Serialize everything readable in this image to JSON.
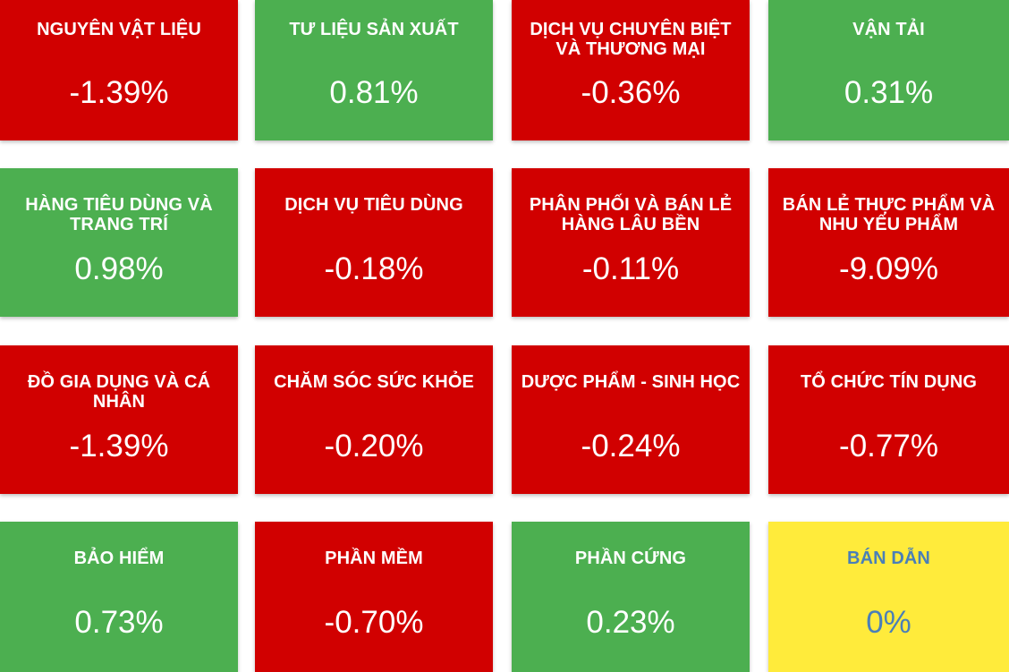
{
  "tiles": [
    {
      "name": "NGUYÊN VẬT LIỆU",
      "change": "-1.39%",
      "status": "down",
      "color": "#d10000"
    },
    {
      "name": "TƯ LIỆU SẢN XUẤT",
      "change": "0.81%",
      "status": "up",
      "color": "#4caf50"
    },
    {
      "name": "DỊCH VỤ CHUYÊN BIỆT VÀ THƯƠNG MẠI",
      "change": "-0.36%",
      "status": "down",
      "color": "#d10000"
    },
    {
      "name": "VẬN TẢI",
      "change": "0.31%",
      "status": "up",
      "color": "#4caf50"
    },
    {
      "name": "HÀNG TIÊU DÙNG VÀ TRANG TRÍ",
      "change": "0.98%",
      "status": "up",
      "color": "#4caf50"
    },
    {
      "name": "DỊCH VỤ TIÊU DÙNG",
      "change": "-0.18%",
      "status": "down",
      "color": "#d10000"
    },
    {
      "name": "PHÂN PHỐI VÀ BÁN LẺ HÀNG LÂU BỀN",
      "change": "-0.11%",
      "status": "down",
      "color": "#d10000"
    },
    {
      "name": "BÁN LẺ THỰC PHẨM VÀ NHU YẾU PHẨM",
      "change": "-9.09%",
      "status": "down",
      "color": "#d10000"
    },
    {
      "name": "ĐỒ GIA DỤNG VÀ CÁ NHÂN",
      "change": "-1.39%",
      "status": "down",
      "color": "#d10000"
    },
    {
      "name": "CHĂM SÓC SỨC KHỎE",
      "change": "-0.20%",
      "status": "down",
      "color": "#d10000"
    },
    {
      "name": "DƯỢC PHẨM - SINH HỌC",
      "change": "-0.24%",
      "status": "down",
      "color": "#d10000"
    },
    {
      "name": "TỔ CHỨC TÍN DỤNG",
      "change": "-0.77%",
      "status": "down",
      "color": "#d10000"
    },
    {
      "name": "BẢO HIỂM",
      "change": "0.73%",
      "status": "up",
      "color": "#4caf50"
    },
    {
      "name": "PHẦN MỀM",
      "change": "-0.70%",
      "status": "down",
      "color": "#d10000"
    },
    {
      "name": "PHẦN CỨNG",
      "change": "0.23%",
      "status": "up",
      "color": "#4caf50"
    },
    {
      "name": "BÁN DẪN",
      "change": "0%",
      "status": "flat",
      "color": "#ffeb3b"
    }
  ]
}
